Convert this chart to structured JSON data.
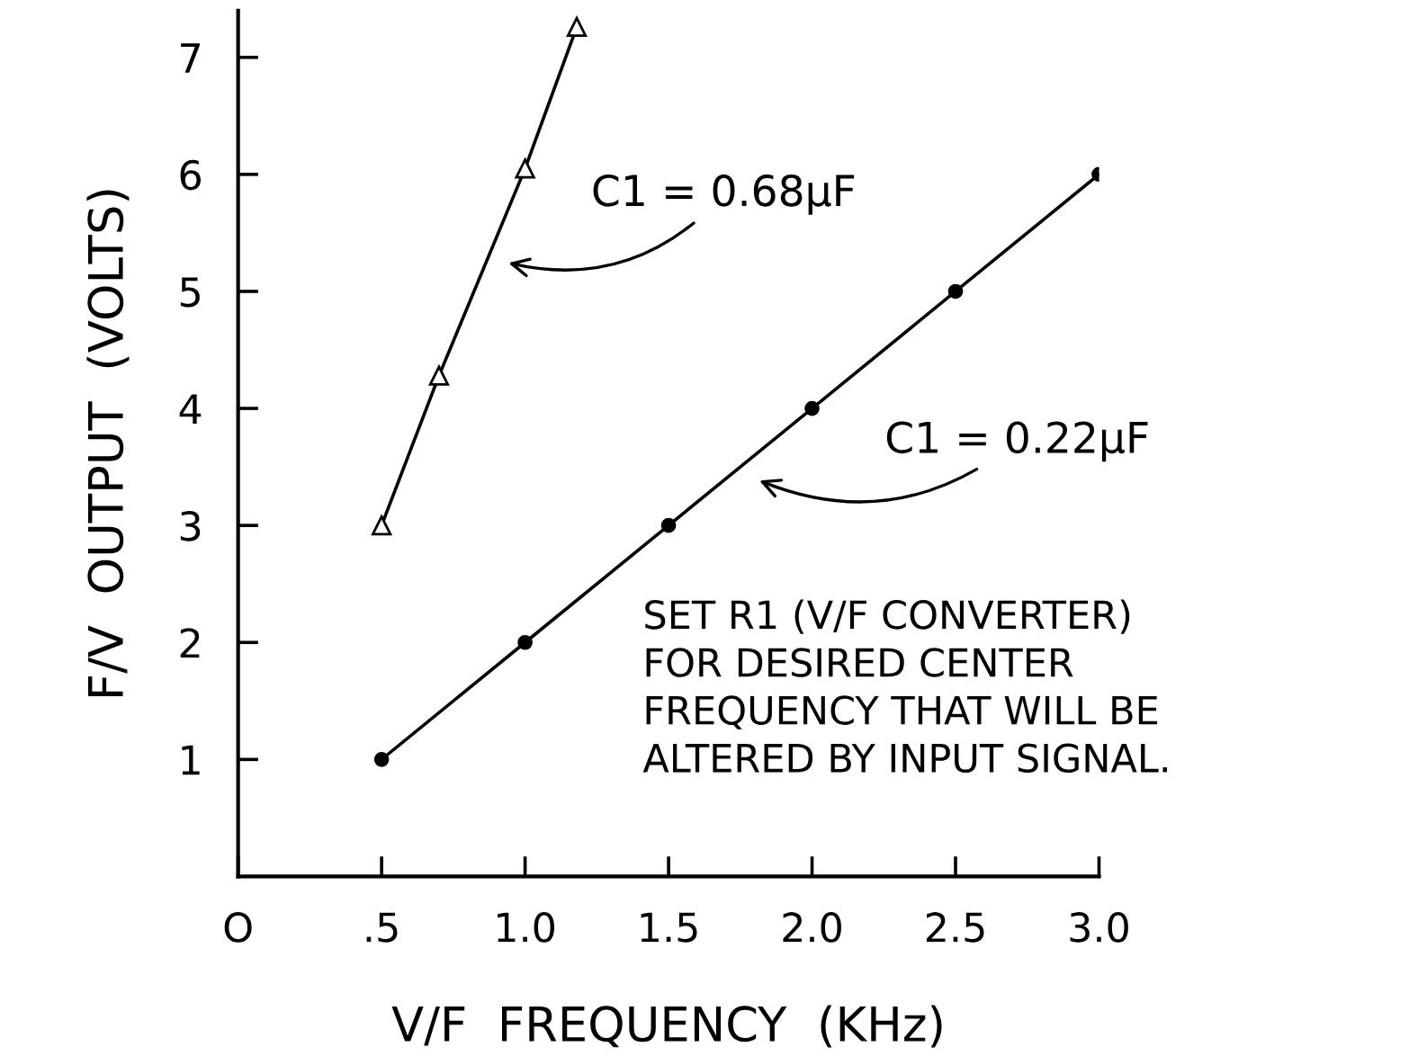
{
  "chart_data": {
    "type": "line",
    "xlabel": "V/F  FREQUENCY  (KHz)",
    "ylabel": "F/V  OUTPUT  (VOLTS)",
    "series": [
      {
        "name": "C1 = 0.68µF",
        "color": "#000000",
        "marker": "triangle",
        "x": [
          0.5,
          0.7,
          1.0,
          1.18
        ],
        "values": [
          3.0,
          4.28,
          6.05,
          7.26
        ]
      },
      {
        "name": "C1 = 0.22µF",
        "color": "#000000",
        "marker": "circle",
        "x": [
          0.5,
          1.0,
          1.5,
          2.0,
          2.5,
          3.0
        ],
        "values": [
          1,
          2,
          3,
          4,
          5,
          6
        ]
      }
    ],
    "xlim": [
      0,
      3.0
    ],
    "ylim": [
      0,
      7.4
    ],
    "xticks": [
      {
        "value": 0,
        "label": "O"
      },
      {
        "value": 0.5,
        "label": ".5"
      },
      {
        "value": 1.0,
        "label": "1.0"
      },
      {
        "value": 1.5,
        "label": "1.5"
      },
      {
        "value": 2.0,
        "label": "2.0"
      },
      {
        "value": 2.5,
        "label": "2.5"
      },
      {
        "value": 3.0,
        "label": "3.0"
      }
    ],
    "yticks": [
      1,
      2,
      3,
      4,
      5,
      6,
      7
    ],
    "annotations": [
      "SET R1 (V/F CONVERTER)\nFOR DESIRED CENTER\nFREQUENCY THAT WILL BE\nALTERED BY INPUT SIGNAL."
    ],
    "grid": false,
    "legend": false,
    "line_style": "solid"
  }
}
